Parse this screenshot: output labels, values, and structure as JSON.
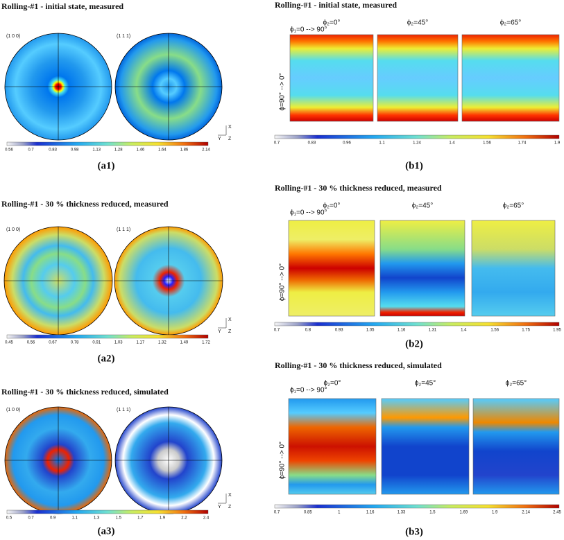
{
  "sample_axes": [
    "X",
    "Y",
    "Z"
  ],
  "pole_figures": [
    {
      "title": "Rolling-#1 - initial state, measured",
      "pole_labels": [
        "(1 0 0)",
        "(1 1 1)"
      ],
      "colorbar_ticks": [
        "0.56",
        "0.7",
        "0.83",
        "0.98",
        "1.13",
        "1.28",
        "1.46",
        "1.64",
        "1.86",
        "2.14"
      ],
      "caption": "(a1)"
    },
    {
      "title": "Rolling-#1 - 30 % thickness reduced,  measured",
      "pole_labels": [
        "(1 0 0)",
        "(1 1 1)"
      ],
      "colorbar_ticks": [
        "0.45",
        "0.56",
        "0.67",
        "0.78",
        "0.91",
        "1.03",
        "1.17",
        "1.32",
        "1.49",
        "1.72"
      ],
      "caption": "(a2)"
    },
    {
      "title": "Rolling-#1 - 30 % thickness reduced,  simulated",
      "pole_labels": [
        "(1 0 0)",
        "(1 1 1)"
      ],
      "colorbar_ticks": [
        "0.5",
        "0.7",
        "0.9",
        "1.1",
        "1.3",
        "1.5",
        "1.7",
        "1.9",
        "2.2",
        "2.4"
      ],
      "caption": "(a3)"
    }
  ],
  "odf_sections": [
    {
      "title": "Rolling-#1 - initial state, measured",
      "section_labels": [
        "ϕ₂=0°",
        "ϕ₂=45°",
        "ϕ₂=65°"
      ],
      "phi1_label": "ϕ₁=0 --> 90°",
      "phi_label": "ϕ=90° --> 0°",
      "colorbar_ticks": [
        "0.7",
        "0.83",
        "0.96",
        "1.1",
        "1.24",
        "1.4",
        "1.56",
        "1.74",
        "1.9"
      ],
      "caption": "(b1)"
    },
    {
      "title": "Rolling-#1 - 30 % thickness reduced,  measured",
      "section_labels": [
        "ϕ₂=0°",
        "ϕ₂=45°",
        "ϕ₂=65°"
      ],
      "phi1_label": "ϕ₁=0 --> 90°",
      "phi_label": "ϕ=90° --> 0°",
      "colorbar_ticks": [
        "0.7",
        "0.8",
        "0.93",
        "1.05",
        "1.16",
        "1.31",
        "1.4",
        "1.56",
        "1.75",
        "1.95"
      ],
      "caption": "(b2)"
    },
    {
      "title": "Rolling-#1 - 30 % thickness reduced,  simulated",
      "section_labels": [
        "ϕ₂=0°",
        "ϕ₂=45°",
        "ϕ₂=65°"
      ],
      "phi1_label": "ϕ₁=0 --> 90°",
      "phi_label": "ϕ=90° --> 0°",
      "colorbar_ticks": [
        "0.7",
        "0.85",
        "1",
        "1.16",
        "1.33",
        "1.5",
        "1.69",
        "1.9",
        "2.14",
        "2.45"
      ],
      "caption": "(b3)"
    }
  ]
}
